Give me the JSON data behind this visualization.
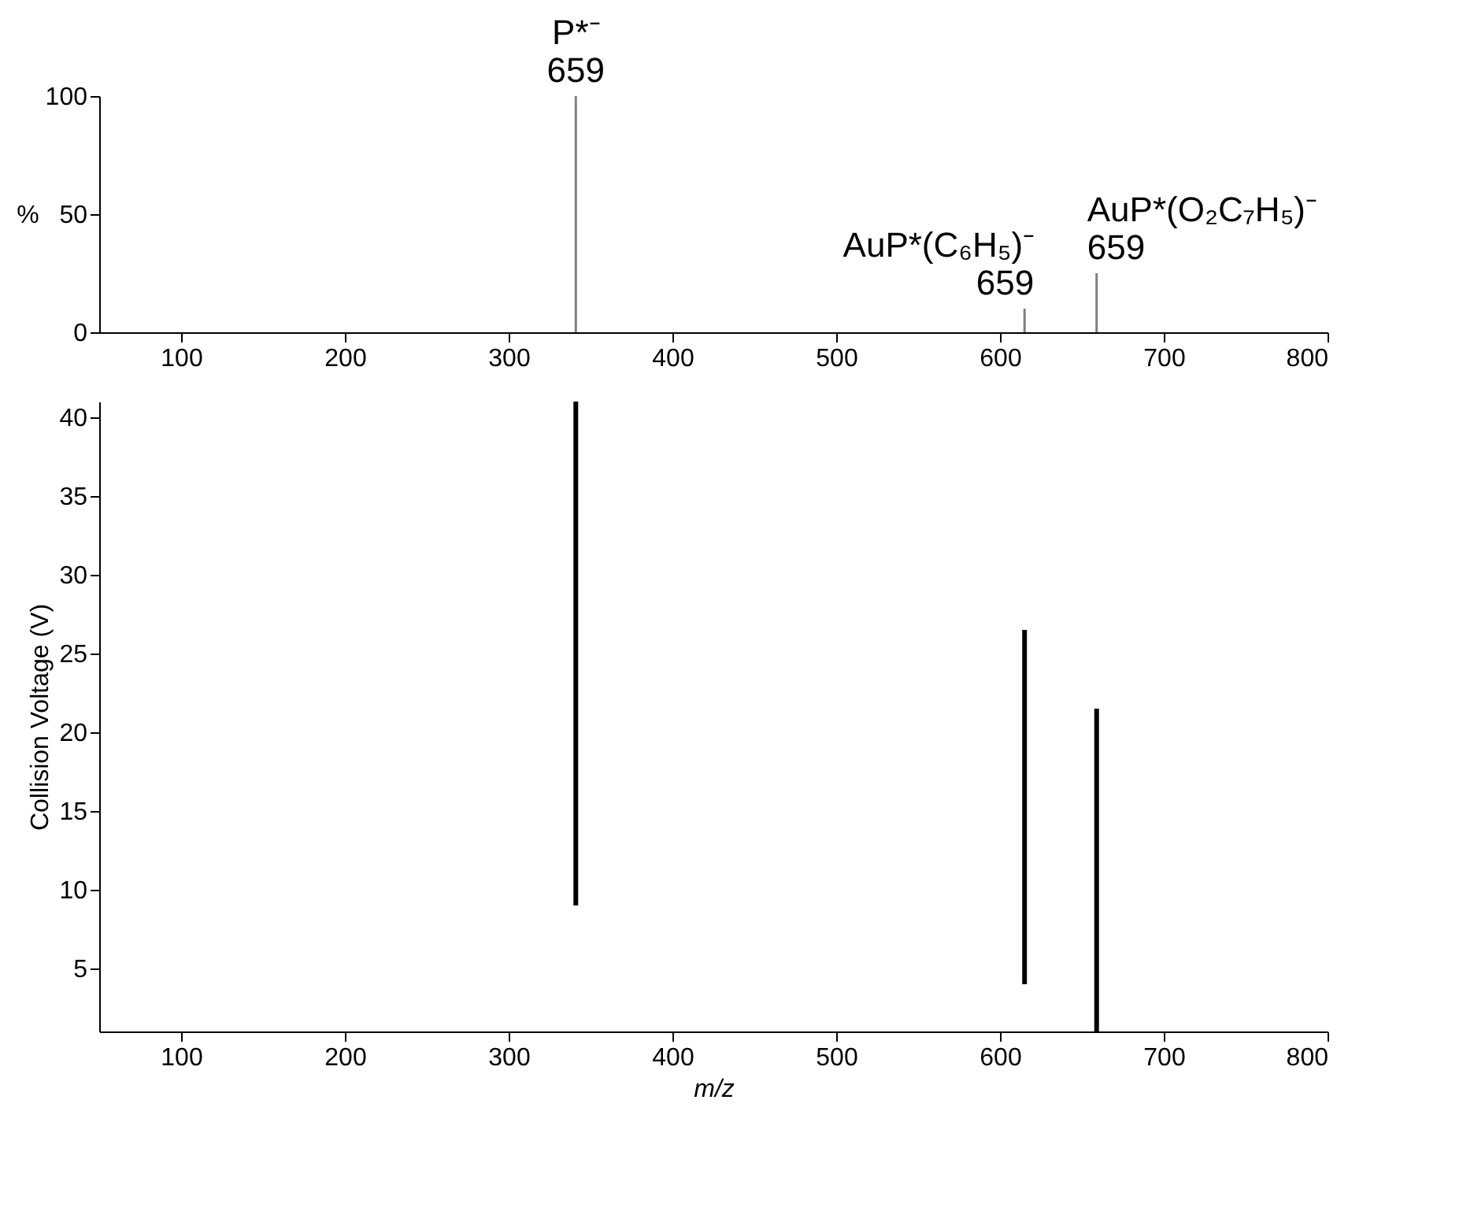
{
  "chart_data": [
    {
      "type": "bar",
      "x": [
        341,
        615,
        659
      ],
      "values": [
        100,
        10,
        25
      ],
      "color": "#808080",
      "ylabel": "%",
      "xlim": [
        50,
        800
      ],
      "xticks": [
        100,
        200,
        300,
        400,
        500,
        600,
        700,
        800
      ],
      "ylim": [
        0,
        100
      ],
      "yticks": [
        0,
        50,
        100
      ],
      "grid": false,
      "annotations": [
        {
          "text": "P*⁻",
          "x": 341,
          "y": 100
        },
        {
          "text": "659",
          "x": 341,
          "y": 100
        },
        {
          "text": "AuP*(C₆H₅)⁻",
          "x": 615,
          "y": 10
        },
        {
          "text": "659",
          "x": 615,
          "y": 10
        },
        {
          "text": "AuP*(O₂C₇H₅)⁻",
          "x": 659,
          "y": 25
        },
        {
          "text": "659",
          "x": 659,
          "y": 25
        }
      ]
    },
    {
      "type": "bar",
      "x": [
        341,
        615,
        659
      ],
      "base": [
        9,
        4,
        1
      ],
      "values": [
        32,
        22.5,
        20.5
      ],
      "color": "#000000",
      "xlabel": "m/z",
      "ylabel": "Collision Voltage (V)",
      "xlim": [
        50,
        800
      ],
      "xticks": [
        100,
        200,
        300,
        400,
        500,
        600,
        700,
        800
      ],
      "ylim": [
        1,
        41
      ],
      "yticks": [
        5,
        10,
        15,
        20,
        25,
        30,
        35,
        40
      ],
      "grid": false
    }
  ]
}
